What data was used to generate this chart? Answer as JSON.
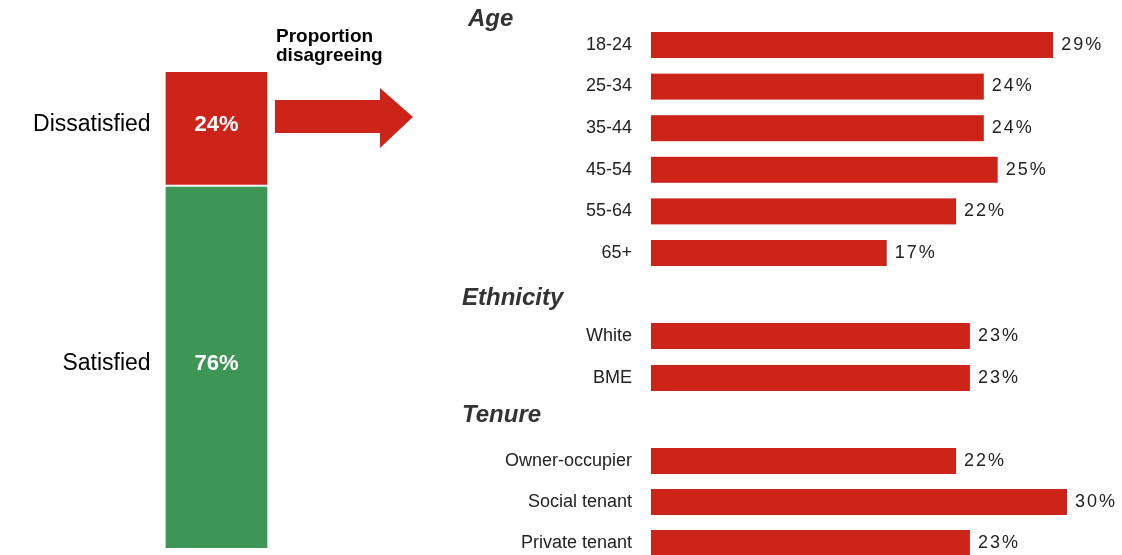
{
  "chart_data": [
    {
      "type": "bar",
      "stacked": true,
      "categories": [
        null
      ],
      "annotations": [
        "Proportion disagreeing"
      ],
      "series": [
        {
          "name": "Satisfied",
          "color": "#3d9655",
          "values": [
            76
          ],
          "value_labels": [
            "76%"
          ]
        },
        {
          "name": "Dissatisfied",
          "color": "#cc2418",
          "values": [
            24
          ],
          "value_labels": [
            "24%"
          ]
        }
      ]
    },
    {
      "type": "bar",
      "orientation": "horizontal",
      "title": "Age",
      "categories": [
        "18-24",
        "25-34",
        "35-44",
        "45-54",
        "55-64",
        "65+"
      ],
      "series": [
        {
          "color": "#cc2418",
          "values": [
            29,
            24,
            24,
            25,
            22,
            17
          ],
          "value_labels": [
            "29%",
            "24%",
            "24%",
            "25%",
            "22%",
            "17%"
          ]
        }
      ]
    },
    {
      "type": "bar",
      "orientation": "horizontal",
      "title": "Ethnicity",
      "categories": [
        "White",
        "BME"
      ],
      "series": [
        {
          "color": "#cc2418",
          "values": [
            23,
            23
          ],
          "value_labels": [
            "23%",
            "23%"
          ]
        }
      ]
    },
    {
      "type": "bar",
      "orientation": "horizontal",
      "title": "Tenure",
      "categories": [
        "Owner-occupier",
        "Social tenant",
        "Private tenant"
      ],
      "series": [
        {
          "color": "#cc2418",
          "values": [
            22,
            30,
            23
          ],
          "value_labels": [
            "22%",
            "30%",
            "23%"
          ]
        }
      ]
    }
  ]
}
